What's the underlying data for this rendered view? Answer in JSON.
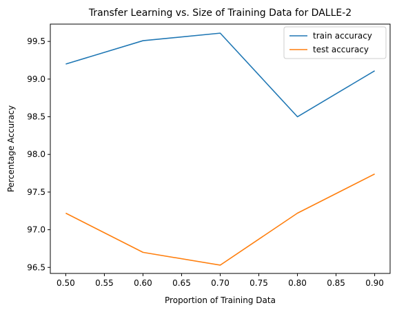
{
  "chart_data": {
    "type": "line",
    "title": "Transfer Learning vs. Size of Training Data for DALLE-2",
    "xlabel": "Proportion of Training Data",
    "ylabel": "Percentage Accuracy",
    "x": [
      0.5,
      0.6,
      0.7,
      0.8,
      0.9
    ],
    "xlim": [
      0.48,
      0.92
    ],
    "ylim": [
      96.42,
      99.73
    ],
    "xticks": [
      "0.50",
      "0.55",
      "0.60",
      "0.65",
      "0.70",
      "0.75",
      "0.80",
      "0.85",
      "0.90"
    ],
    "yticks": [
      "96.5",
      "97.0",
      "97.5",
      "98.0",
      "98.5",
      "99.0",
      "99.5"
    ],
    "grid": false,
    "legend_position": "top-right",
    "series": [
      {
        "name": "train accuracy",
        "color": "#1f77b4",
        "values": [
          99.2,
          99.51,
          99.61,
          98.5,
          99.11
        ]
      },
      {
        "name": "test accuracy",
        "color": "#ff7f0e",
        "values": [
          97.22,
          96.7,
          96.53,
          97.22,
          97.74
        ]
      }
    ]
  }
}
